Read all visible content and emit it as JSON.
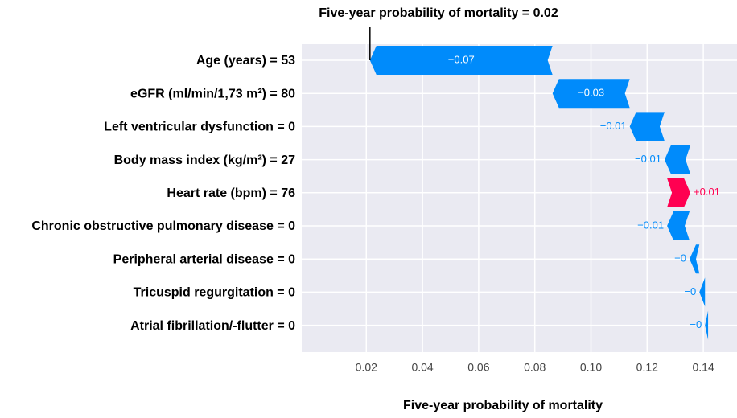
{
  "chart_data": {
    "type": "waterfall",
    "title": "Five-year probability of mortality = 0.02",
    "x_label": "Five-year probability of mortality",
    "categories": [
      "Age (years) = 53",
      "eGFR (ml/min/1,73 m²) = 80",
      "Left ventricular dysfunction = 0",
      "Body mass index (kg/m²) = 27",
      "Heart rate (bpm) = 76",
      "Chronic obstructive pulmonary disease = 0",
      "Peripheral arterial disease = 0",
      "Tricuspid regurgitation = 0",
      "Atrial fibrillation/-flutter = 0"
    ],
    "values": [
      -0.065,
      -0.0275,
      -0.0124,
      -0.0092,
      0.0083,
      -0.008,
      -0.0035,
      -0.002,
      -0.0011
    ],
    "value_labels": [
      "−0.07",
      "−0.03",
      "−0.01",
      "−0.01",
      "+0.01",
      "−0.01",
      "−0",
      "−0",
      "−0"
    ],
    "base_value": 0.1417,
    "colors": {
      "negative": "#008bfb",
      "positive": "#ff0051"
    },
    "xlim": [
      -0.003,
      0.152
    ],
    "xticks": [
      0.02,
      0.04,
      0.06,
      0.08,
      {
        "value": 0.1,
        "label": "0.10"
      },
      0.12,
      0.14
    ],
    "grid": true
  }
}
